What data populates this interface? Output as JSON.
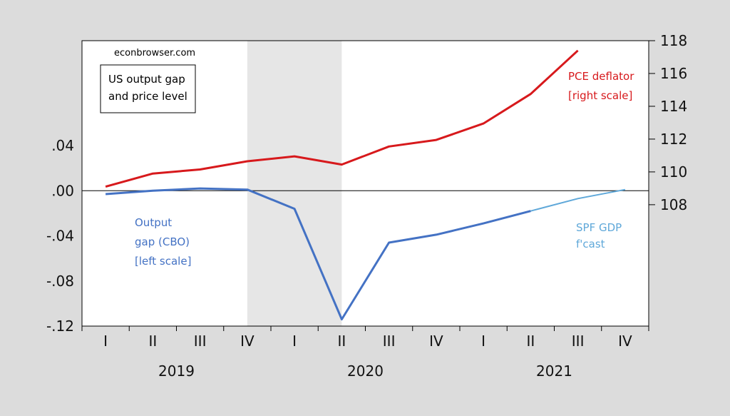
{
  "chart_data": {
    "type": "line",
    "source_label": "econbrowser.com",
    "title_box": [
      "US output gap",
      "and price level"
    ],
    "quarters": [
      "I",
      "II",
      "III",
      "IV",
      "I",
      "II",
      "III",
      "IV",
      "I",
      "II",
      "III",
      "IV"
    ],
    "years": [
      "2019",
      "2020",
      "2021"
    ],
    "left_axis": {
      "ticks": [
        0.04,
        0.0,
        -0.04,
        -0.08,
        -0.12
      ],
      "tick_labels": [
        ".04",
        ".00",
        "-.04",
        "-.08",
        "-.12"
      ],
      "ylim": [
        -0.12,
        0.133
      ]
    },
    "right_axis": {
      "ticks": [
        108,
        110,
        112,
        114,
        116,
        118
      ],
      "tick_labels": [
        "108",
        "110",
        "112",
        "114",
        "116",
        "118"
      ],
      "ylim": [
        100.6,
        118
      ]
    },
    "recession_shade": {
      "from_index": 3,
      "to_index": 5,
      "color": "#e6e6e6"
    },
    "zero_line": 0,
    "series": [
      {
        "key": "output_gap",
        "axis": "left",
        "color": "#4472c4",
        "label": [
          "Output",
          "gap (CBO)",
          "[left scale]"
        ],
        "x_index": [
          0,
          1,
          2,
          3,
          4,
          5,
          6,
          7,
          8,
          9
        ],
        "values": [
          -0.003,
          0.0,
          0.002,
          0.001,
          -0.016,
          -0.114,
          -0.046,
          -0.039,
          -0.029,
          -0.018
        ]
      },
      {
        "key": "spf_gdp_fcast",
        "axis": "left",
        "color": "#5fa8d9",
        "label": [
          "SPF GDP",
          "f'cast"
        ],
        "x_index": [
          9,
          10,
          11
        ],
        "values": [
          -0.018,
          -0.007,
          0.001
        ]
      },
      {
        "key": "pce_deflator",
        "axis": "right",
        "color": "#d7191c",
        "label": [
          "PCE deflator",
          "[right scale]"
        ],
        "x_index": [
          0,
          1,
          2,
          3,
          4,
          5,
          6,
          7,
          8,
          9,
          10
        ],
        "values": [
          109.1,
          109.9,
          110.15,
          110.65,
          110.95,
          110.45,
          111.55,
          111.95,
          112.95,
          114.75,
          117.4
        ]
      }
    ]
  }
}
